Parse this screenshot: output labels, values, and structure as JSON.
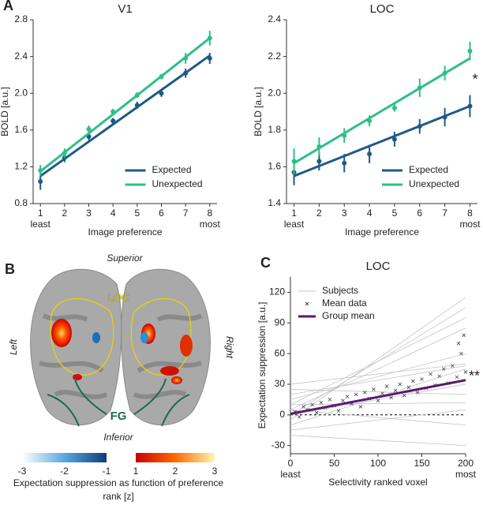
{
  "chart_data": [
    {
      "type": "line",
      "panel": "A",
      "title": "V1",
      "xlabel": "Image preference",
      "ylabel": "BOLD [a.u.]",
      "x": [
        1,
        2,
        3,
        4,
        5,
        6,
        7,
        8
      ],
      "xlim": [
        0.7,
        8.3
      ],
      "xticks": [
        1,
        2,
        3,
        4,
        5,
        6,
        7,
        8
      ],
      "x_end_labels": [
        "least",
        "most"
      ],
      "ylim": [
        0.8,
        2.8
      ],
      "yticks": [
        0.8,
        1.2,
        1.6,
        {
          "value": 2,
          "label": "2.0"
        },
        2.4,
        2.8
      ],
      "fit_x": [
        1,
        8
      ],
      "legend": "lower-right",
      "series": [
        {
          "name": "Expected",
          "color": "#1e5a87",
          "values": [
            1.04,
            1.3,
            1.53,
            1.7,
            1.87,
            2.0,
            2.22,
            2.38
          ],
          "errors": [
            0.09,
            0.05,
            0.04,
            0.03,
            0.04,
            0.04,
            0.05,
            0.06
          ],
          "fit": [
            1.1,
            2.41
          ]
        },
        {
          "name": "Unexpected",
          "color": "#2fbf86",
          "values": [
            1.16,
            1.35,
            1.61,
            1.8,
            1.98,
            2.18,
            2.38,
            2.6
          ],
          "errors": [
            0.06,
            0.05,
            0.04,
            0.03,
            0.03,
            0.03,
            0.06,
            0.08
          ],
          "fit": [
            1.15,
            2.6
          ]
        }
      ]
    },
    {
      "type": "line",
      "panel": null,
      "title": "LOC",
      "xlabel": "Image preference",
      "ylabel": "BOLD [a.u.]",
      "x": [
        1,
        2,
        3,
        4,
        5,
        6,
        7,
        8
      ],
      "xlim": [
        0.7,
        8.3
      ],
      "xticks": [
        1,
        2,
        3,
        4,
        5,
        6,
        7,
        8
      ],
      "x_end_labels": [
        "least",
        "most"
      ],
      "ylim": [
        1.4,
        2.4
      ],
      "yticks": [
        1.4,
        1.6,
        1.8,
        {
          "value": 2,
          "label": "2.0"
        },
        2.2,
        2.4
      ],
      "fit_x": [
        1,
        8
      ],
      "legend": "lower-right",
      "annotation": "*",
      "series": [
        {
          "name": "Expected",
          "color": "#1e5a87",
          "values": [
            1.57,
            1.63,
            1.62,
            1.67,
            1.75,
            1.82,
            1.87,
            1.93
          ],
          "errors": [
            0.07,
            0.05,
            0.05,
            0.05,
            0.04,
            0.04,
            0.05,
            0.06
          ],
          "fit": [
            1.55,
            1.93
          ]
        },
        {
          "name": "Unexpected",
          "color": "#2fbf86",
          "values": [
            1.63,
            1.71,
            1.77,
            1.85,
            1.92,
            2.03,
            2.11,
            2.23
          ],
          "errors": [
            0.07,
            0.05,
            0.04,
            0.03,
            0.02,
            0.05,
            0.04,
            0.05
          ],
          "fit": [
            1.62,
            2.19
          ]
        }
      ]
    },
    {
      "type": "scatter",
      "panel": "C",
      "title": "LOC",
      "xlabel": "Selectivity ranked voxel",
      "ylabel": "Expectation suppression [a.u.]",
      "xlim": [
        0,
        200
      ],
      "xticks": [
        0,
        50,
        100,
        150,
        200
      ],
      "x_end_labels": [
        "least",
        "most"
      ],
      "ylim": [
        -38,
        135
      ],
      "yticks": [
        -30,
        0,
        30,
        60,
        90,
        120
      ],
      "reference_line": 0,
      "line_x": [
        0,
        200
      ],
      "legend": "upper-left",
      "annotation": "**",
      "subjects": {
        "name": "Subjects",
        "color": "#c4c4c4",
        "lines": [
          [
            -5,
            115
          ],
          [
            0,
            105
          ],
          [
            10,
            95
          ],
          [
            5,
            85
          ],
          [
            15,
            60
          ],
          [
            20,
            48
          ],
          [
            -10,
            45
          ],
          [
            0,
            30
          ],
          [
            25,
            20
          ],
          [
            10,
            12
          ],
          [
            -15,
            5
          ],
          [
            5,
            -10
          ],
          [
            -20,
            -30
          ],
          [
            30,
            50
          ]
        ]
      },
      "mean_data": {
        "name": "Mean data",
        "color": "#444",
        "x": [
          5,
          10,
          15,
          20,
          25,
          30,
          35,
          40,
          45,
          50,
          55,
          60,
          65,
          70,
          75,
          80,
          85,
          90,
          95,
          100,
          105,
          110,
          115,
          120,
          125,
          130,
          135,
          140,
          145,
          150,
          155,
          160,
          165,
          170,
          175,
          180,
          185,
          190,
          195,
          200,
          192,
          198
        ],
        "values": [
          3,
          -2,
          8,
          5,
          10,
          2,
          12,
          7,
          15,
          9,
          4,
          14,
          18,
          11,
          20,
          8,
          22,
          16,
          25,
          14,
          21,
          28,
          17,
          24,
          30,
          19,
          27,
          33,
          22,
          35,
          26,
          40,
          29,
          38,
          45,
          31,
          48,
          37,
          60,
          42,
          70,
          78
        ]
      },
      "group_mean": {
        "name": "Group mean",
        "color": "#5b1a6e",
        "values": [
          1,
          34
        ]
      }
    }
  ],
  "panel_b": {
    "letter": "B",
    "superior": "Superior",
    "inferior": "Inferior",
    "left": "Left",
    "right": "Right",
    "roi_label": "LOC",
    "fg_label": "FG",
    "colorbar": {
      "ticks": [
        -3,
        -2,
        -1,
        1,
        2,
        3
      ],
      "label_line1": "Expectation suppression as function of preference",
      "label_line2": "rank [z]"
    }
  }
}
